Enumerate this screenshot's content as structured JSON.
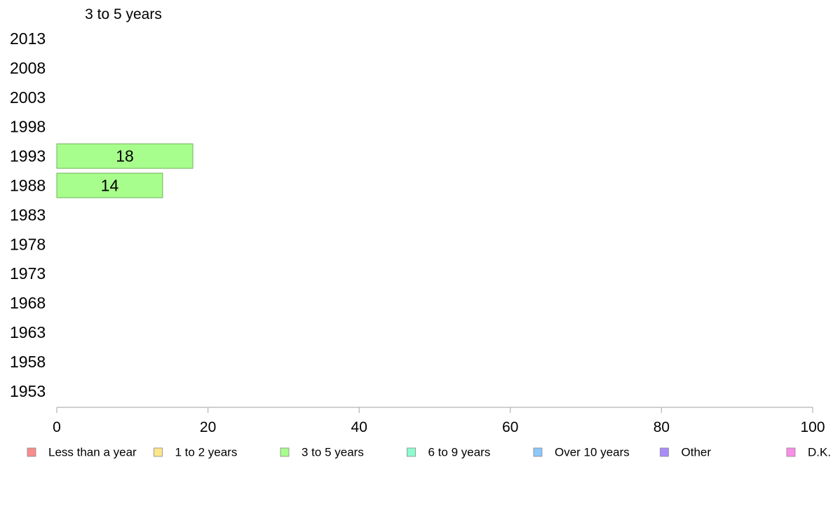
{
  "chart_data": {
    "type": "bar",
    "orientation": "horizontal",
    "panel_title": "3 to 5 years",
    "categories": [
      "2013",
      "2008",
      "2003",
      "1998",
      "1993",
      "1988",
      "1983",
      "1978",
      "1973",
      "1968",
      "1963",
      "1958",
      "1953"
    ],
    "series": [
      {
        "name": "3 to 5 years",
        "values": [
          null,
          null,
          null,
          null,
          18,
          14,
          null,
          null,
          null,
          null,
          null,
          null,
          null
        ]
      }
    ],
    "xlim": [
      0,
      100
    ],
    "xticks": [
      "0",
      "20",
      "40",
      "60",
      "80",
      "100"
    ],
    "grid": false,
    "legend_position": "bottom",
    "legend": [
      {
        "label": "Less than a year",
        "color": "#f88c8c"
      },
      {
        "label": "1 to 2 years",
        "color": "#fde68a"
      },
      {
        "label": "3 to 5 years",
        "color": "#a8fe8c"
      },
      {
        "label": "6 to 9 years",
        "color": "#8cfccf"
      },
      {
        "label": "Over 10 years",
        "color": "#8cc8fc"
      },
      {
        "label": "Other",
        "color": "#a98cfc"
      },
      {
        "label": "D.K.",
        "color": "#fc8ce9"
      }
    ],
    "bar_color": "#a8fe8c",
    "bar_stroke": "#6fb25a",
    "axis_color": "#b3b3b3"
  }
}
